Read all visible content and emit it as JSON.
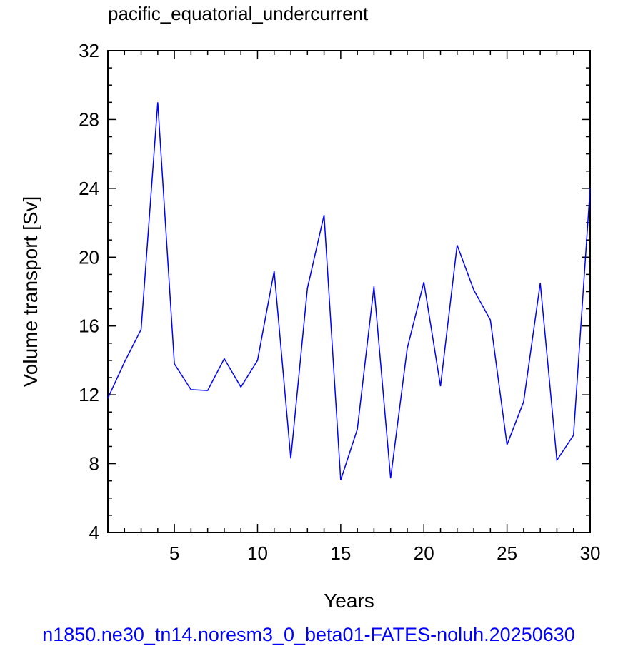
{
  "chart_data": {
    "type": "line",
    "title": "pacific_equatorial_undercurrent",
    "xlabel": "Years",
    "ylabel": "Volume transport [Sv]",
    "xlim": [
      1,
      30
    ],
    "ylim": [
      4,
      32
    ],
    "x_major_ticks": [
      5,
      10,
      15,
      20,
      25,
      30
    ],
    "x_tick_labels": [
      "5",
      "10",
      "15",
      "20",
      "25",
      "30"
    ],
    "y_major_ticks": [
      4,
      8,
      12,
      16,
      20,
      24,
      28,
      32
    ],
    "y_tick_labels": [
      "4",
      "8",
      "12",
      "16",
      "20",
      "24",
      "28",
      "32"
    ],
    "grid": false,
    "line_color": "#0000ff",
    "series": [
      {
        "x": [
          1,
          2,
          3,
          4,
          5,
          6,
          7,
          8,
          9,
          10,
          11,
          12,
          13,
          14,
          15,
          16,
          17,
          18,
          19,
          20,
          21,
          22,
          23,
          24,
          25,
          26,
          27,
          28,
          29,
          30
        ],
        "y": [
          11.8,
          13.9,
          15.8,
          29.0,
          13.8,
          12.3,
          12.25,
          14.1,
          12.45,
          14.0,
          19.2,
          8.3,
          18.2,
          22.45,
          7.05,
          10.0,
          18.3,
          7.15,
          14.7,
          18.55,
          12.5,
          20.7,
          18.1,
          16.35,
          9.1,
          11.6,
          18.5,
          8.2,
          9.65,
          24.0
        ]
      }
    ]
  },
  "footer": {
    "case_name": "n1850.ne30_tn14.noresm3_0_beta01-FATES-noluh.20250630",
    "color": "#0000ff"
  }
}
